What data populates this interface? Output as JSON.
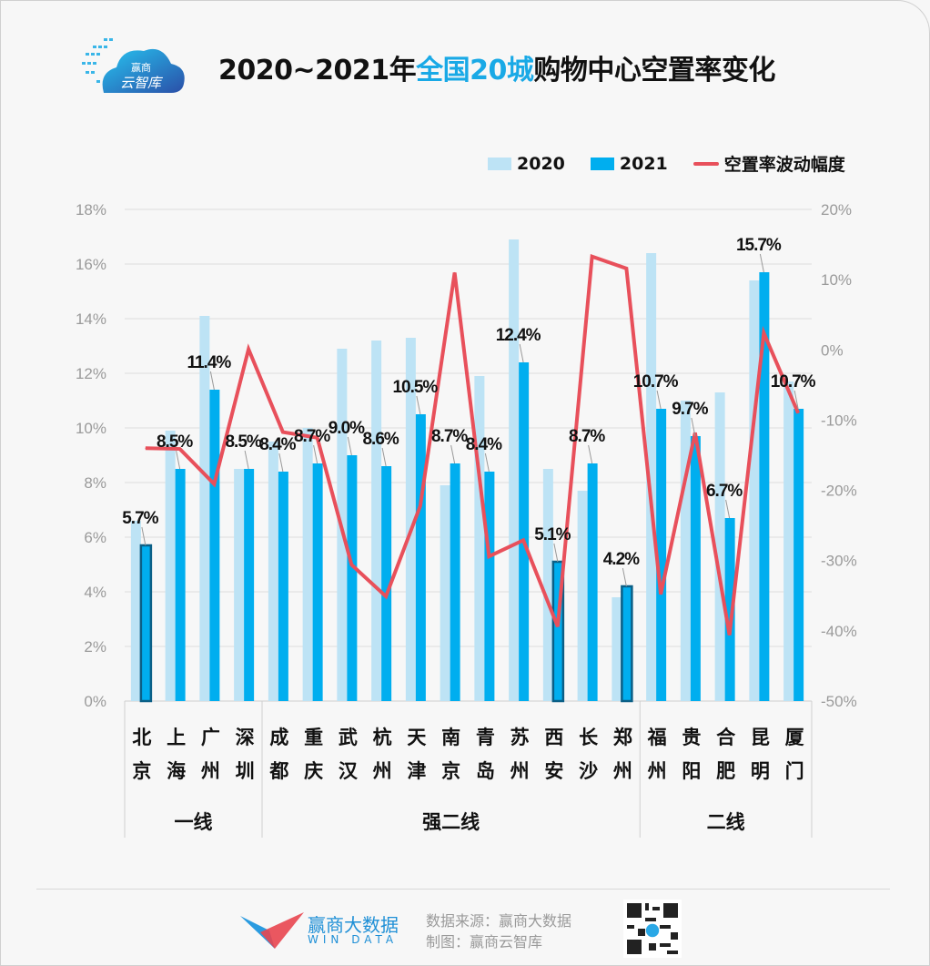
{
  "header": {
    "logo_text_top": "赢商",
    "logo_text_bottom": "云智库",
    "title_parts": [
      "2020~2021年",
      "全国20城",
      "购物中心空置率变化"
    ]
  },
  "legend": {
    "s2020": "2020",
    "s2021": "2021",
    "line": "空置率波动幅度"
  },
  "colors": {
    "c2020": "#bde3f5",
    "c2021": "#00aeef",
    "highlight_outline": "#0b5f86",
    "line": "#e8505b"
  },
  "chart_data": {
    "type": "bar+line",
    "title": "2020~2021年全国20城购物中心空置率变化",
    "categories": [
      "北京",
      "上海",
      "广州",
      "深圳",
      "成都",
      "重庆",
      "武汉",
      "杭州",
      "天津",
      "南京",
      "青岛",
      "苏州",
      "西安",
      "长沙",
      "郑州",
      "福州",
      "贵阳",
      "合肥",
      "昆明",
      "厦门"
    ],
    "groups": [
      {
        "label": "一线",
        "count": 4
      },
      {
        "label": "强二线",
        "count": 11
      },
      {
        "label": "二线",
        "count": 5
      }
    ],
    "series": [
      {
        "name": "2020",
        "axis": "left",
        "type": "bar",
        "values": [
          6.6,
          9.9,
          14.1,
          8.5,
          9.5,
          10.0,
          12.9,
          13.2,
          13.3,
          7.9,
          11.9,
          16.9,
          8.5,
          7.7,
          3.8,
          16.4,
          11.0,
          11.3,
          15.4,
          11.7
        ]
      },
      {
        "name": "2021",
        "axis": "left",
        "type": "bar",
        "values": [
          5.7,
          8.5,
          11.4,
          8.5,
          8.4,
          8.7,
          9.0,
          8.6,
          10.5,
          8.7,
          8.4,
          12.4,
          5.1,
          8.7,
          4.2,
          10.7,
          9.7,
          6.7,
          15.7,
          10.7
        ],
        "labels": [
          "5.7%",
          "8.5%",
          "11.4%",
          "8.5%",
          "8.4%",
          "8.7%",
          "9.0%",
          "8.6%",
          "10.5%",
          "8.7%",
          "8.4%",
          "12.4%",
          "5.1%",
          "8.7%",
          "4.2%",
          "10.7%",
          "9.7%",
          "6.7%",
          "15.7%",
          "10.7%"
        ],
        "highlighted": [
          "北京",
          "西安",
          "郑州"
        ]
      },
      {
        "name": "空置率波动幅度",
        "axis": "right",
        "type": "line",
        "values": [
          -14.0,
          -14.1,
          -19.1,
          0.1,
          -11.7,
          -12.5,
          -30.6,
          -35.1,
          -22.2,
          11.0,
          -29.4,
          -27.1,
          -39.4,
          13.3,
          11.6,
          -34.8,
          -11.8,
          -40.6,
          2.4,
          -9.0
        ]
      }
    ],
    "y_left": {
      "min": 0,
      "max": 18,
      "step": 2,
      "ticks": [
        "0%",
        "2%",
        "4%",
        "6%",
        "8%",
        "10%",
        "12%",
        "14%",
        "16%",
        "18%"
      ]
    },
    "y_right": {
      "min": -50,
      "max": 20,
      "step": 10,
      "ticks": [
        "-50%",
        "-40%",
        "-30%",
        "-20%",
        "-10%",
        "0%",
        "10%",
        "20%"
      ]
    },
    "grid": true,
    "legend_position": "top-right"
  },
  "footer": {
    "brand_cn": "赢商大数据",
    "brand_en": "WIN DATA",
    "source": "数据来源：赢商大数据",
    "made_by": "制图：赢商云智库"
  }
}
